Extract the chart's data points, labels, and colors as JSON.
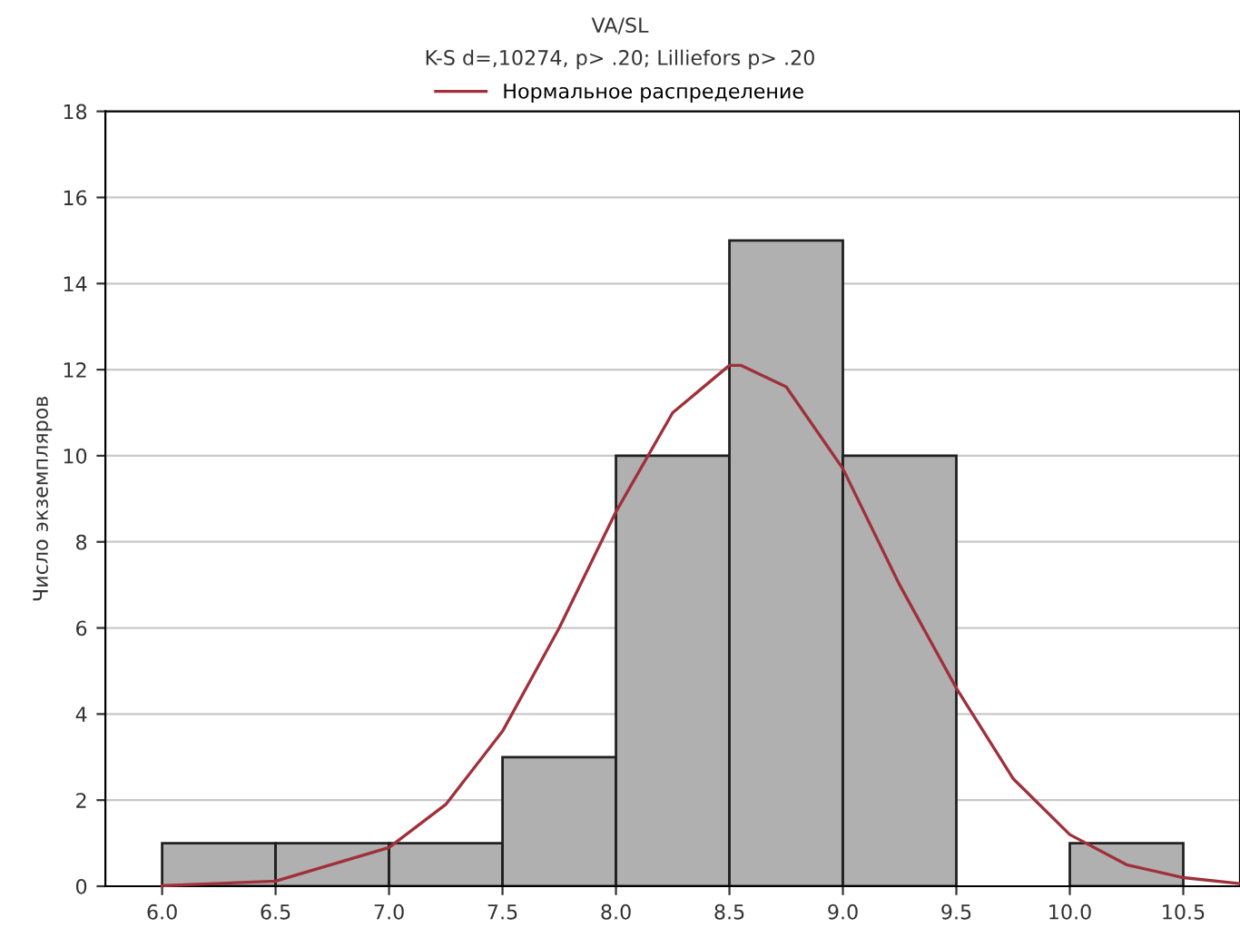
{
  "chart_data": {
    "type": "histogram",
    "title": "VA/SL",
    "subtitle": "K-S d=,10274, p> .20; Lilliefors p> .20",
    "ylabel": "Число экземпляров",
    "bins": [
      6.0,
      6.5,
      7.0,
      7.5,
      8.0,
      8.5,
      9.0,
      9.5,
      10.0,
      10.5
    ],
    "series": [
      {
        "color": "#b0b0b0",
        "values": [
          1,
          1,
          1,
          3,
          10,
          15,
          10,
          0,
          1
        ]
      },
      {
        "type": "line",
        "name": "Нормальное распределение",
        "color": "#a0303a",
        "x": [
          6.0,
          6.5,
          7.0,
          7.25,
          7.5,
          7.75,
          8.0,
          8.25,
          8.5,
          8.55,
          8.75,
          9.0,
          9.25,
          9.5,
          9.75,
          10.0,
          10.25,
          10.5,
          10.75
        ],
        "values": [
          0.01,
          0.12,
          0.9,
          1.9,
          3.6,
          6.0,
          8.7,
          11.0,
          12.1,
          12.1,
          11.6,
          9.7,
          7.0,
          4.6,
          2.5,
          1.2,
          0.5,
          0.2,
          0.06
        ]
      }
    ],
    "xlim": [
      5.75,
      10.75
    ],
    "xticks": [
      {
        "value": 6.0,
        "label": "6.0"
      },
      {
        "value": 6.5,
        "label": "6.5"
      },
      {
        "value": 7.0,
        "label": "7.0"
      },
      {
        "value": 7.5,
        "label": "7.5"
      },
      {
        "value": 8.0,
        "label": "8.0"
      },
      {
        "value": 8.5,
        "label": "8.5"
      },
      {
        "value": 9.0,
        "label": "9.0"
      },
      {
        "value": 9.5,
        "label": "9.5"
      },
      {
        "value": 10.0,
        "label": "10.0"
      },
      {
        "value": 10.5,
        "label": "10.5"
      }
    ],
    "ylim": [
      0,
      18
    ],
    "yticks": [
      0,
      2,
      4,
      6,
      8,
      10,
      12,
      14,
      16,
      18
    ],
    "grid": "y",
    "legend": "top"
  }
}
